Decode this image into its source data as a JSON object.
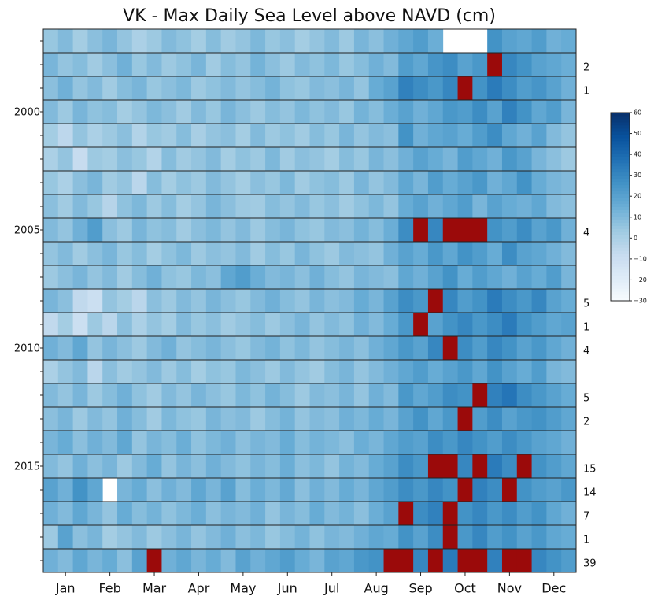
{
  "chart_data": {
    "type": "heatmap",
    "title": "VK - Max Daily Sea Level above NAVD (cm)",
    "x_categories": [
      "Jan",
      "Feb",
      "Mar",
      "Apr",
      "May",
      "Jun",
      "Jul",
      "Aug",
      "Sep",
      "Oct",
      "Nov",
      "Dec"
    ],
    "rows": [
      {
        "label": null,
        "count": null,
        "values": [
          5,
          10,
          2,
          8,
          12,
          6,
          0,
          4,
          10,
          7,
          2,
          9,
          3,
          6,
          11,
          5,
          8,
          2,
          6,
          10,
          4,
          12,
          8,
          14,
          18,
          22,
          15,
          null,
          null,
          null,
          26,
          20,
          18,
          22,
          14,
          16
        ]
      },
      {
        "label": null,
        "count": 2,
        "values": [
          12,
          6,
          9,
          3,
          8,
          14,
          5,
          10,
          4,
          7,
          12,
          3,
          9,
          6,
          13,
          8,
          4,
          10,
          7,
          11,
          5,
          9,
          14,
          10,
          22,
          18,
          25,
          28,
          20,
          24,
          65,
          30,
          26,
          20,
          18,
          15
        ]
      },
      {
        "label": null,
        "count": 1,
        "values": [
          8,
          14,
          6,
          10,
          3,
          9,
          12,
          5,
          8,
          11,
          4,
          7,
          10,
          6,
          9,
          13,
          7,
          5,
          10,
          8,
          12,
          6,
          16,
          20,
          32,
          28,
          24,
          30,
          65,
          26,
          34,
          28,
          22,
          25,
          20,
          14
        ]
      },
      {
        "label": "2000",
        "count": null,
        "values": [
          10,
          4,
          12,
          7,
          9,
          2,
          6,
          11,
          8,
          3,
          10,
          5,
          12,
          8,
          4,
          9,
          6,
          11,
          7,
          10,
          5,
          13,
          9,
          15,
          20,
          14,
          18,
          24,
          22,
          28,
          20,
          32,
          26,
          18,
          22,
          12
        ]
      },
      {
        "label": null,
        "count": null,
        "values": [
          2,
          -5,
          6,
          0,
          4,
          8,
          -2,
          5,
          3,
          9,
          1,
          6,
          8,
          2,
          10,
          4,
          7,
          3,
          9,
          5,
          12,
          6,
          10,
          8,
          26,
          14,
          18,
          20,
          16,
          22,
          28,
          18,
          14,
          20,
          10,
          6
        ]
      },
      {
        "label": null,
        "count": null,
        "values": [
          0,
          6,
          -8,
          4,
          2,
          8,
          5,
          -2,
          9,
          3,
          6,
          10,
          2,
          7,
          4,
          11,
          3,
          8,
          6,
          2,
          9,
          5,
          12,
          8,
          14,
          20,
          16,
          12,
          22,
          18,
          14,
          24,
          20,
          12,
          8,
          4
        ]
      },
      {
        "label": null,
        "count": null,
        "values": [
          5,
          0,
          8,
          12,
          3,
          6,
          -4,
          9,
          2,
          7,
          4,
          10,
          6,
          2,
          8,
          5,
          11,
          3,
          7,
          9,
          4,
          12,
          6,
          10,
          18,
          12,
          22,
          16,
          20,
          24,
          14,
          18,
          26,
          16,
          12,
          10
        ]
      },
      {
        "label": null,
        "count": null,
        "values": [
          8,
          3,
          10,
          5,
          -3,
          7,
          11,
          4,
          9,
          2,
          6,
          12,
          8,
          4,
          3,
          9,
          6,
          10,
          5,
          8,
          3,
          7,
          11,
          6,
          16,
          20,
          14,
          18,
          22,
          12,
          20,
          16,
          14,
          18,
          10,
          8
        ]
      },
      {
        "label": "2005",
        "count": 4,
        "values": [
          10,
          6,
          14,
          22,
          8,
          4,
          12,
          7,
          9,
          3,
          8,
          11,
          6,
          10,
          4,
          9,
          12,
          7,
          5,
          10,
          8,
          13,
          9,
          15,
          28,
          65,
          30,
          65,
          65,
          65,
          26,
          22,
          28,
          20,
          24,
          14
        ]
      },
      {
        "label": null,
        "count": null,
        "values": [
          6,
          10,
          3,
          8,
          12,
          5,
          9,
          2,
          7,
          11,
          4,
          8,
          6,
          10,
          3,
          9,
          5,
          12,
          7,
          4,
          10,
          8,
          6,
          14,
          20,
          16,
          24,
          18,
          26,
          22,
          16,
          28,
          20,
          18,
          14,
          10
        ]
      },
      {
        "label": null,
        "count": null,
        "values": [
          4,
          8,
          12,
          6,
          10,
          3,
          9,
          14,
          7,
          5,
          11,
          8,
          18,
          22,
          15,
          10,
          12,
          8,
          14,
          9,
          6,
          12,
          10,
          8,
          18,
          14,
          20,
          26,
          16,
          22,
          18,
          14,
          20,
          16,
          22,
          12
        ]
      },
      {
        "label": null,
        "count": 5,
        "values": [
          12,
          8,
          -6,
          -10,
          6,
          2,
          -4,
          8,
          4,
          10,
          6,
          12,
          8,
          5,
          10,
          14,
          9,
          6,
          12,
          8,
          10,
          16,
          12,
          20,
          28,
          24,
          65,
          30,
          22,
          26,
          34,
          28,
          24,
          30,
          20,
          16
        ]
      },
      {
        "label": null,
        "count": 1,
        "values": [
          -6,
          2,
          -10,
          4,
          -4,
          8,
          0,
          6,
          2,
          10,
          5,
          8,
          3,
          6,
          9,
          4,
          8,
          12,
          6,
          10,
          7,
          14,
          10,
          16,
          24,
          65,
          20,
          26,
          30,
          24,
          28,
          34,
          26,
          22,
          18,
          20
        ]
      },
      {
        "label": "2010",
        "count": 4,
        "values": [
          14,
          10,
          18,
          6,
          12,
          8,
          4,
          10,
          14,
          6,
          9,
          12,
          8,
          5,
          10,
          13,
          7,
          11,
          6,
          9,
          12,
          8,
          14,
          18,
          24,
          20,
          30,
          65,
          28,
          22,
          30,
          26,
          20,
          24,
          18,
          14
        ]
      },
      {
        "label": null,
        "count": null,
        "values": [
          0,
          6,
          10,
          -4,
          8,
          3,
          6,
          10,
          4,
          9,
          2,
          7,
          5,
          11,
          8,
          4,
          10,
          6,
          3,
          9,
          12,
          6,
          10,
          14,
          18,
          22,
          16,
          20,
          24,
          18,
          26,
          20,
          16,
          22,
          12,
          10
        ]
      },
      {
        "label": null,
        "count": 5,
        "values": [
          10,
          6,
          12,
          4,
          9,
          14,
          7,
          3,
          10,
          6,
          12,
          8,
          5,
          11,
          7,
          13,
          9,
          4,
          10,
          8,
          12,
          6,
          14,
          10,
          24,
          18,
          22,
          28,
          26,
          65,
          32,
          36,
          28,
          24,
          20,
          16
        ]
      },
      {
        "label": null,
        "count": 2,
        "values": [
          8,
          12,
          4,
          10,
          6,
          14,
          9,
          3,
          11,
          7,
          5,
          12,
          8,
          10,
          4,
          9,
          13,
          6,
          10,
          8,
          14,
          11,
          16,
          12,
          20,
          26,
          18,
          24,
          65,
          22,
          28,
          20,
          24,
          26,
          22,
          18
        ]
      },
      {
        "label": null,
        "count": null,
        "values": [
          12,
          16,
          8,
          14,
          10,
          18,
          6,
          12,
          9,
          15,
          7,
          11,
          14,
          8,
          12,
          10,
          16,
          9,
          13,
          11,
          8,
          15,
          12,
          18,
          22,
          20,
          28,
          24,
          30,
          26,
          22,
          28,
          24,
          20,
          18,
          14
        ]
      },
      {
        "label": "2015",
        "count": 15,
        "values": [
          10,
          6,
          14,
          8,
          12,
          4,
          10,
          16,
          6,
          12,
          8,
          14,
          10,
          7,
          12,
          9,
          15,
          8,
          11,
          6,
          13,
          10,
          16,
          20,
          28,
          24,
          65,
          65,
          30,
          65,
          34,
          28,
          65,
          26,
          22,
          18
        ]
      },
      {
        "label": null,
        "count": 14,
        "values": [
          20,
          14,
          26,
          18,
          null,
          12,
          16,
          8,
          14,
          10,
          18,
          12,
          20,
          9,
          15,
          11,
          17,
          8,
          14,
          10,
          16,
          12,
          18,
          22,
          28,
          24,
          30,
          26,
          65,
          32,
          28,
          65,
          26,
          22,
          20,
          24
        ]
      },
      {
        "label": null,
        "count": 7,
        "values": [
          14,
          10,
          18,
          12,
          6,
          16,
          9,
          13,
          7,
          11,
          15,
          8,
          12,
          10,
          14,
          6,
          12,
          9,
          16,
          10,
          13,
          8,
          15,
          20,
          65,
          28,
          32,
          65,
          26,
          30,
          24,
          28,
          22,
          26,
          18,
          14
        ]
      },
      {
        "label": null,
        "count": 1,
        "values": [
          4,
          20,
          8,
          12,
          2,
          6,
          10,
          4,
          8,
          12,
          6,
          10,
          14,
          8,
          11,
          5,
          9,
          13,
          7,
          12,
          10,
          14,
          18,
          16,
          26,
          20,
          28,
          65,
          24,
          30,
          22,
          26,
          20,
          24,
          18,
          16
        ]
      },
      {
        "label": null,
        "count": 39,
        "values": [
          14,
          10,
          18,
          12,
          16,
          8,
          20,
          65,
          14,
          18,
          12,
          16,
          10,
          20,
          14,
          18,
          22,
          16,
          12,
          20,
          18,
          24,
          26,
          65,
          65,
          30,
          65,
          34,
          65,
          65,
          32,
          65,
          65,
          30,
          26,
          22
        ]
      }
    ],
    "colorbar": {
      "lim": [
        -30,
        60
      ],
      "ticks": [
        {
          "value": -30,
          "label": "−30"
        },
        {
          "value": -20,
          "label": "−20"
        },
        {
          "value": -10,
          "label": "−10"
        },
        0,
        10,
        20,
        30,
        40,
        50,
        60
      ],
      "colors": [
        "#f7fbff",
        "#deebf7",
        "#c6dbef",
        "#9ecae1",
        "#6baed6",
        "#4292c6",
        "#2171b5",
        "#08519c",
        "#08306b"
      ],
      "over_color": "#9b0a0a"
    }
  }
}
